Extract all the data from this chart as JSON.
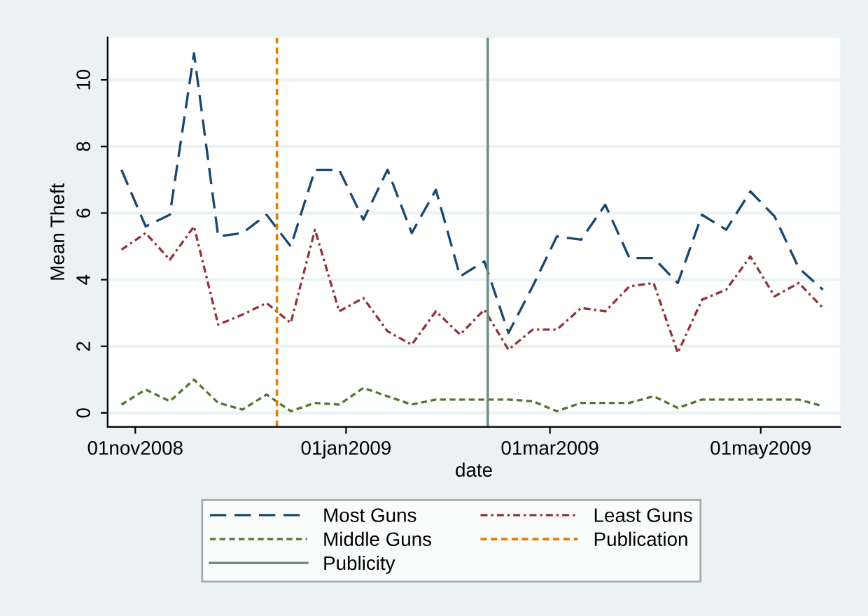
{
  "chart_data": {
    "type": "line",
    "xlabel": "date",
    "ylabel": "Mean Theft",
    "x": [
      "2008-10-28",
      "2008-11-04",
      "2008-11-11",
      "2008-11-18",
      "2008-11-25",
      "2008-12-02",
      "2008-12-09",
      "2008-12-16",
      "2008-12-23",
      "2008-12-30",
      "2009-01-06",
      "2009-01-13",
      "2009-01-20",
      "2009-01-27",
      "2009-02-03",
      "2009-02-10",
      "2009-02-17",
      "2009-02-24",
      "2009-03-03",
      "2009-03-10",
      "2009-03-17",
      "2009-03-24",
      "2009-03-31",
      "2009-04-07",
      "2009-04-14",
      "2009-04-21",
      "2009-04-28",
      "2009-05-05",
      "2009-05-12",
      "2009-05-19"
    ],
    "series": [
      {
        "name": "Most Guns",
        "color": "#1a476f",
        "line_style": "dashed",
        "values": [
          7.3,
          5.6,
          5.95,
          10.8,
          5.3,
          5.4,
          5.95,
          5.0,
          7.3,
          7.3,
          5.8,
          7.3,
          5.4,
          6.7,
          4.1,
          4.55,
          2.4,
          3.8,
          5.3,
          5.2,
          6.25,
          4.65,
          4.65,
          3.9,
          5.95,
          5.5,
          6.65,
          5.9,
          4.35,
          3.7
        ]
      },
      {
        "name": "Least Guns",
        "color": "#90353b",
        "line_style": "dashdot",
        "values": [
          4.9,
          5.4,
          4.6,
          5.6,
          2.65,
          2.95,
          3.3,
          2.7,
          5.5,
          3.05,
          3.45,
          2.45,
          2.05,
          3.05,
          2.35,
          3.1,
          1.9,
          2.5,
          2.5,
          3.15,
          3.05,
          3.8,
          3.9,
          1.8,
          3.4,
          3.7,
          4.7,
          3.5,
          3.9,
          3.15
        ]
      },
      {
        "name": "Middle Guns",
        "color": "#55752f",
        "line_style": "dotted",
        "values": [
          0.25,
          0.7,
          0.35,
          1.0,
          0.3,
          0.1,
          0.55,
          0.05,
          0.3,
          0.25,
          0.75,
          0.5,
          0.25,
          0.4,
          0.4,
          0.4,
          0.4,
          0.35,
          0.05,
          0.3,
          0.3,
          0.3,
          0.5,
          0.15,
          0.4,
          0.4,
          0.4,
          0.4,
          0.4,
          0.2
        ]
      }
    ],
    "ref_lines": [
      {
        "axis": "x",
        "value": "2008-12-12",
        "label": "Publication",
        "color": "#e37e00",
        "line_style": "dotted"
      },
      {
        "axis": "x",
        "value": "2009-02-11",
        "label": "Publicity",
        "color": "#6e8e84",
        "line_style": "solid"
      }
    ],
    "xlim": [
      "2008-10-24",
      "2009-05-24"
    ],
    "xticks": [
      {
        "value": "2008-11-01",
        "label": "01nov2008"
      },
      {
        "value": "2009-01-01",
        "label": "01jan2009"
      },
      {
        "value": "2009-03-01",
        "label": "01mar2009"
      },
      {
        "value": "2009-05-01",
        "label": "01may2009"
      }
    ],
    "ylim": [
      -0.42,
      11.27
    ],
    "yticks": [
      0,
      2,
      4,
      6,
      8,
      10
    ],
    "grid": "y",
    "legend": "bottom"
  }
}
